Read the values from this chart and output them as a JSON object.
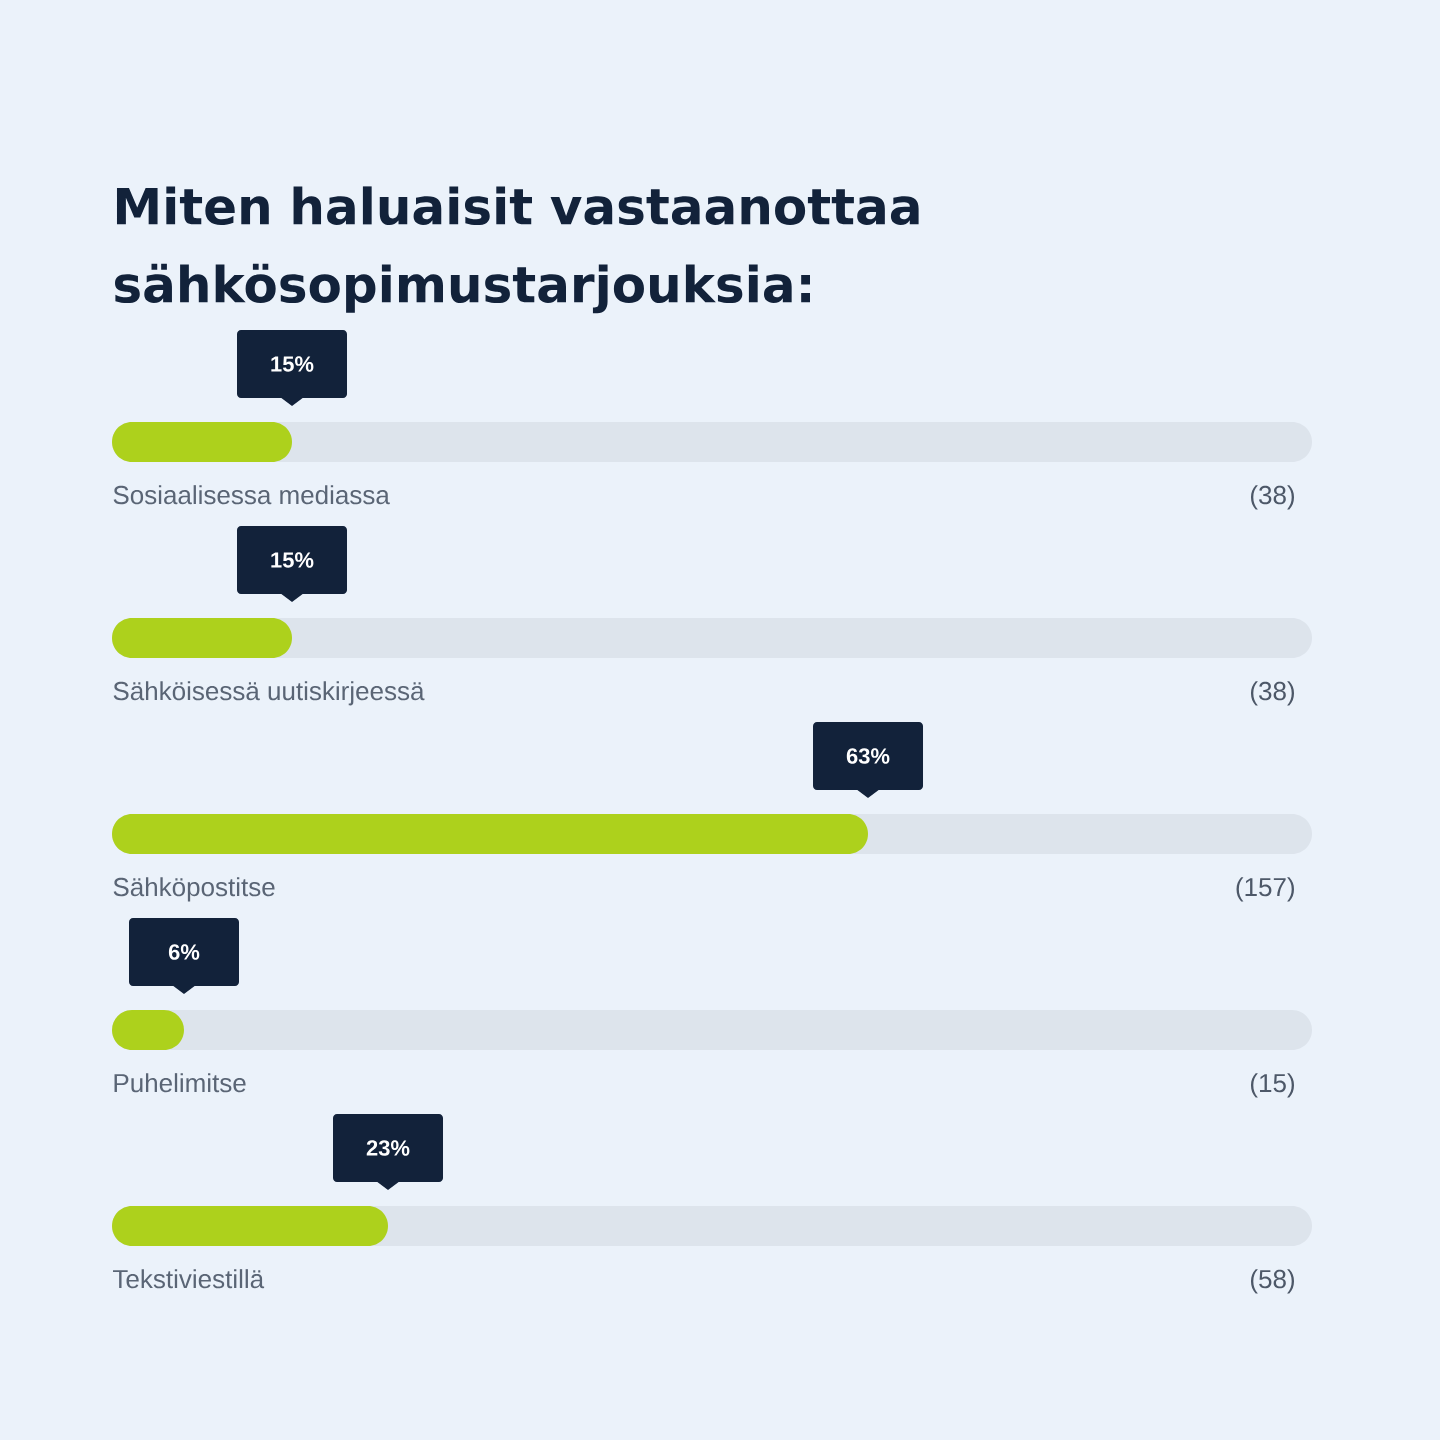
{
  "chart_data": {
    "type": "bar",
    "orientation": "horizontal",
    "title": "Miten haluaisit vastaanottaa sähkösopimustarjouksia:",
    "categories": [
      "Sosiaalisessa mediassa",
      "Sähköisessä uutiskirjeessä",
      "Sähköpostitse",
      "Puhelimitse",
      "Tekstiviestillä"
    ],
    "values": [
      15,
      15,
      63,
      6,
      23
    ],
    "value_labels": [
      "15%",
      "15%",
      "63%",
      "6%",
      "23%"
    ],
    "color": "#add11c",
    "xlim": [
      0,
      100
    ],
    "tick_labels": "y",
    "annotations": [
      "(38)",
      "(38)",
      "(157)",
      "(15)",
      "(58)"
    ]
  }
}
